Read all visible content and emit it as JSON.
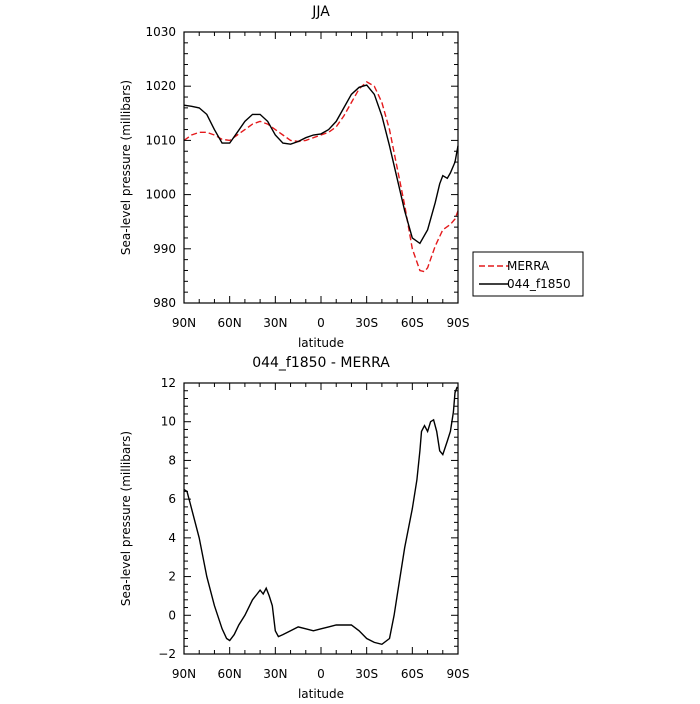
{
  "chart_data": [
    {
      "type": "line",
      "title": "JJA",
      "xlabel": "latitude",
      "ylabel": "Sea-level pressure (millibars)",
      "xlim": [
        90,
        -90
      ],
      "ylim": [
        980,
        1030
      ],
      "x_ticks": [
        90,
        60,
        30,
        0,
        -30,
        -60,
        -90
      ],
      "x_tick_labels": [
        "90N",
        "60N",
        "30N",
        "0",
        "30S",
        "60S",
        "90S"
      ],
      "y_ticks": [
        980,
        990,
        1000,
        1010,
        1020,
        1030
      ],
      "y_tick_labels": [
        "980",
        "990",
        "1000",
        "1010",
        "1020",
        "1030"
      ],
      "legend": "outside-right",
      "series": [
        {
          "name": "MERRA",
          "color": "#e41a1c",
          "dash": "dashed",
          "x": [
            90,
            85,
            80,
            75,
            70,
            65,
            60,
            55,
            50,
            45,
            40,
            35,
            30,
            25,
            20,
            15,
            10,
            5,
            0,
            -5,
            -10,
            -15,
            -20,
            -25,
            -30,
            -35,
            -40,
            -45,
            -50,
            -55,
            -60,
            -65,
            -68,
            -70,
            -75,
            -80,
            -85,
            -88,
            -90
          ],
          "y": [
            1010.0,
            1011.0,
            1011.5,
            1011.5,
            1011.0,
            1010.2,
            1010.0,
            1011.0,
            1012.0,
            1013.0,
            1013.5,
            1013.0,
            1012.0,
            1011.0,
            1010.0,
            1009.8,
            1010.0,
            1010.5,
            1011.0,
            1011.5,
            1012.5,
            1014.5,
            1017.0,
            1019.5,
            1020.8,
            1020.0,
            1017.0,
            1012.0,
            1005.0,
            998.0,
            990.0,
            986.0,
            985.8,
            986.5,
            990.5,
            993.5,
            994.5,
            995.5,
            997.0
          ]
        },
        {
          "name": "044_f1850",
          "color": "#000000",
          "dash": "solid",
          "x": [
            90,
            85,
            80,
            75,
            70,
            65,
            60,
            55,
            50,
            45,
            40,
            35,
            30,
            25,
            20,
            15,
            10,
            5,
            0,
            -5,
            -10,
            -15,
            -20,
            -25,
            -30,
            -35,
            -40,
            -45,
            -50,
            -55,
            -60,
            -65,
            -70,
            -75,
            -78,
            -80,
            -83,
            -85,
            -88,
            -90
          ],
          "y": [
            1016.5,
            1016.3,
            1016.0,
            1014.8,
            1012.0,
            1009.5,
            1009.5,
            1011.5,
            1013.5,
            1014.8,
            1014.8,
            1013.5,
            1011.0,
            1009.5,
            1009.3,
            1009.8,
            1010.5,
            1011.0,
            1011.2,
            1012.0,
            1013.5,
            1016.0,
            1018.5,
            1019.8,
            1020.2,
            1018.5,
            1014.5,
            1009.0,
            1003.0,
            997.0,
            992.0,
            991.0,
            993.5,
            998.5,
            1002.0,
            1003.5,
            1003.0,
            1004.0,
            1006.0,
            1009.0
          ]
        }
      ]
    },
    {
      "type": "line",
      "title": "044_f1850 - MERRA",
      "xlabel": "latitude",
      "ylabel": "Sea-level pressure (millibars)",
      "xlim": [
        90,
        -90
      ],
      "ylim": [
        -2,
        12
      ],
      "x_ticks": [
        90,
        60,
        30,
        0,
        -30,
        -60,
        -90
      ],
      "x_tick_labels": [
        "90N",
        "60N",
        "30N",
        "0",
        "30S",
        "60S",
        "90S"
      ],
      "y_ticks": [
        -2,
        0,
        2,
        4,
        6,
        8,
        10,
        12
      ],
      "y_tick_labels": [
        "−2",
        "0",
        "2",
        "4",
        "6",
        "8",
        "10",
        "12"
      ],
      "series": [
        {
          "color": "#000000",
          "dash": "solid",
          "x": [
            90,
            88,
            86,
            84,
            80,
            75,
            70,
            65,
            62,
            60,
            57,
            54,
            50,
            45,
            42,
            40,
            38,
            36,
            34,
            32,
            30,
            28,
            25,
            20,
            15,
            10,
            5,
            0,
            -5,
            -10,
            -15,
            -20,
            -25,
            -30,
            -35,
            -40,
            -45,
            -48,
            -50,
            -55,
            -60,
            -63,
            -65,
            -66,
            -68,
            -70,
            -72,
            -74,
            -76,
            -78,
            -80,
            -83,
            -85,
            -87,
            -88,
            -89.5
          ],
          "y": [
            6.5,
            6.4,
            5.8,
            5.2,
            4.0,
            2.0,
            0.5,
            -0.7,
            -1.2,
            -1.3,
            -1.0,
            -0.5,
            0.0,
            0.8,
            1.1,
            1.3,
            1.1,
            1.4,
            1.0,
            0.5,
            -0.8,
            -1.1,
            -1.0,
            -0.8,
            -0.6,
            -0.7,
            -0.8,
            -0.7,
            -0.6,
            -0.5,
            -0.5,
            -0.5,
            -0.8,
            -1.2,
            -1.4,
            -1.5,
            -1.2,
            0.0,
            1.0,
            3.5,
            5.5,
            7.0,
            8.5,
            9.5,
            9.8,
            9.5,
            10.0,
            10.1,
            9.5,
            8.5,
            8.3,
            9.0,
            9.5,
            10.5,
            11.5,
            11.8
          ]
        }
      ]
    }
  ]
}
